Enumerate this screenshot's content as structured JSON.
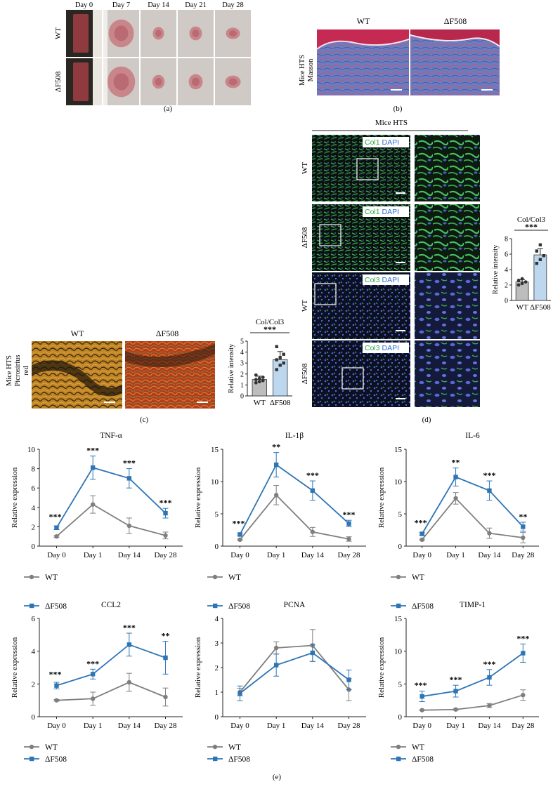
{
  "colors": {
    "wt": "#7f7f7f",
    "df508": "#2e75b6",
    "bar_wt": "#bdbdbd",
    "bar_df508": "#bcd7ee",
    "wound": "#c9868a",
    "skin": "#d8d4d0",
    "masson_blue": "#5c6fb8",
    "masson_red": "#c4264e",
    "picro_orange": "#c97a1c",
    "picro_red": "#b3281c",
    "if_green": "#3fb95a",
    "if_blue": "#3a5ec2"
  },
  "panel_a": {
    "caption": "(a)",
    "days": [
      "Day 0",
      "Day 7",
      "Day 14",
      "Day 21",
      "Day 28"
    ],
    "rows": [
      "WT",
      "ΔF508"
    ]
  },
  "panel_b": {
    "caption": "(b)",
    "cols": [
      "WT",
      "ΔF508"
    ],
    "side_label": [
      "Mice HTS",
      "Masson"
    ]
  },
  "panel_c": {
    "caption": "(c)",
    "cols": [
      "WT",
      "ΔF508"
    ],
    "side_label": [
      "Mice HTS",
      "Picrosirius",
      "red"
    ]
  },
  "panel_d": {
    "caption": "(d)",
    "header": "Mice HTS",
    "rows": [
      {
        "side": "WT",
        "stain": "Col1",
        "dapi": "DAPI"
      },
      {
        "side": "ΔF508",
        "stain": "Col1",
        "dapi": "DAPI"
      },
      {
        "side": "WT",
        "stain": "Col3",
        "dapi": "DAPI"
      },
      {
        "side": "ΔF508",
        "stain": "Col3",
        "dapi": "DAPI"
      }
    ]
  },
  "panel_e": {
    "caption": "(e)"
  },
  "legend": {
    "wt": "WT",
    "df508": "ΔF508"
  },
  "chart_data": [
    {
      "id": "bar_c",
      "type": "bar",
      "title": "Col/Col3",
      "ylabel": "Relative intensity",
      "categories": [
        "WT",
        "ΔF508"
      ],
      "values": [
        1.5,
        3.3
      ],
      "errors": [
        0.3,
        0.75
      ],
      "points": [
        [
          1.2,
          1.3,
          1.4,
          1.5,
          1.6,
          1.7,
          1.9
        ],
        [
          2.4,
          2.8,
          3.0,
          3.3,
          3.5,
          3.8,
          4.5
        ]
      ],
      "ylim": [
        0,
        5
      ],
      "yticks": [
        0,
        1,
        2,
        3,
        4,
        5
      ],
      "significance": "***"
    },
    {
      "id": "bar_d",
      "type": "bar",
      "title": "Col/Col3",
      "ylabel": "Relative intensity",
      "categories": [
        "WT",
        "ΔF508"
      ],
      "values": [
        2.4,
        5.9
      ],
      "errors": [
        0.3,
        0.8
      ],
      "points": [
        [
          2.0,
          2.2,
          2.4,
          2.6,
          2.8
        ],
        [
          4.8,
          5.3,
          5.8,
          6.4,
          7.2
        ]
      ],
      "ylim": [
        0,
        8
      ],
      "yticks": [
        0,
        2,
        4,
        6,
        8
      ],
      "significance": "***"
    },
    {
      "id": "tnf",
      "type": "line",
      "title": "TNF-α",
      "ylabel": "Relative expression",
      "categories": [
        "Day 0",
        "Day 1",
        "Day 14",
        "Day 28"
      ],
      "ylim": [
        0,
        10
      ],
      "yticks": [
        0,
        2,
        4,
        6,
        8,
        10
      ],
      "series": [
        {
          "name": "WT",
          "values": [
            1.0,
            4.3,
            2.1,
            1.1
          ],
          "errors": [
            0.1,
            0.9,
            0.8,
            0.35
          ]
        },
        {
          "name": "ΔF508",
          "values": [
            1.9,
            8.1,
            7.0,
            3.4
          ],
          "errors": [
            0.2,
            1.2,
            1.0,
            0.5
          ]
        }
      ],
      "significance": [
        "***",
        "***",
        "***",
        "***"
      ]
    },
    {
      "id": "il1b",
      "type": "line",
      "title": "IL-1β",
      "ylabel": "Relative expression",
      "categories": [
        "Day 0",
        "Day 1",
        "Day 14",
        "Day 28"
      ],
      "ylim": [
        0,
        15
      ],
      "yticks": [
        0,
        5,
        10,
        15
      ],
      "series": [
        {
          "name": "WT",
          "values": [
            1.0,
            7.9,
            2.2,
            1.1
          ],
          "errors": [
            0.1,
            1.5,
            0.7,
            0.35
          ]
        },
        {
          "name": "ΔF508",
          "values": [
            1.8,
            12.6,
            8.6,
            3.5
          ],
          "errors": [
            0.2,
            1.9,
            1.5,
            0.5
          ]
        }
      ],
      "significance": [
        "***",
        "**",
        "***",
        "***"
      ]
    },
    {
      "id": "il6",
      "type": "line",
      "title": "IL-6",
      "ylabel": "Relative expression",
      "categories": [
        "Day 0",
        "Day 1",
        "Day 14",
        "Day 28"
      ],
      "ylim": [
        0,
        15
      ],
      "yticks": [
        0,
        5,
        10,
        15
      ],
      "series": [
        {
          "name": "WT",
          "values": [
            1.0,
            7.4,
            2.0,
            1.3
          ],
          "errors": [
            0.1,
            0.9,
            0.8,
            0.8
          ]
        },
        {
          "name": "ΔF508",
          "values": [
            1.9,
            10.7,
            8.6,
            3.0
          ],
          "errors": [
            0.2,
            1.4,
            1.5,
            0.7
          ]
        }
      ],
      "significance": [
        "***",
        "**",
        "***",
        "**"
      ]
    },
    {
      "id": "ccl2",
      "type": "line",
      "title": "CCL2",
      "ylabel": "Relative expression",
      "categories": [
        "Day 0",
        "Day 1",
        "Day 14",
        "Day 28"
      ],
      "ylim": [
        0,
        6
      ],
      "yticks": [
        0,
        2,
        4,
        6
      ],
      "series": [
        {
          "name": "WT",
          "values": [
            1.0,
            1.1,
            2.1,
            1.2
          ],
          "errors": [
            0.05,
            0.4,
            0.55,
            0.55
          ]
        },
        {
          "name": "ΔF508",
          "values": [
            1.9,
            2.6,
            4.4,
            3.6
          ],
          "errors": [
            0.2,
            0.3,
            0.7,
            1.0
          ]
        }
      ],
      "significance": [
        "***",
        "***",
        "***",
        "**"
      ]
    },
    {
      "id": "pcna",
      "type": "line",
      "title": "PCNA",
      "ylabel": "Relative expression",
      "categories": [
        "Day 0",
        "Day 1",
        "Day 14",
        "Day 28"
      ],
      "ylim": [
        0,
        4
      ],
      "yticks": [
        0,
        1,
        2,
        3,
        4
      ],
      "series": [
        {
          "name": "WT",
          "values": [
            1.0,
            2.8,
            2.9,
            1.1
          ],
          "errors": [
            0.15,
            0.25,
            0.65,
            0.45
          ]
        },
        {
          "name": "ΔF508",
          "values": [
            0.95,
            2.1,
            2.6,
            1.5
          ],
          "errors": [
            0.3,
            0.45,
            0.35,
            0.4
          ]
        }
      ],
      "significance": [
        "",
        "",
        "",
        ""
      ]
    },
    {
      "id": "timp1",
      "type": "line",
      "title": "TIMP-1",
      "ylabel": "Relative expression",
      "categories": [
        "Day 0",
        "Day 1",
        "Day 14",
        "Day 28"
      ],
      "ylim": [
        0,
        15
      ],
      "yticks": [
        0,
        5,
        10,
        15
      ],
      "series": [
        {
          "name": "WT",
          "values": [
            1.0,
            1.1,
            1.7,
            3.3
          ],
          "errors": [
            0.05,
            0.1,
            0.3,
            0.8
          ]
        },
        {
          "name": "ΔF508",
          "values": [
            3.1,
            3.9,
            6.0,
            9.7
          ],
          "errors": [
            0.8,
            0.9,
            1.2,
            1.4
          ]
        }
      ],
      "significance": [
        "***",
        "***",
        "***",
        "***"
      ]
    }
  ]
}
